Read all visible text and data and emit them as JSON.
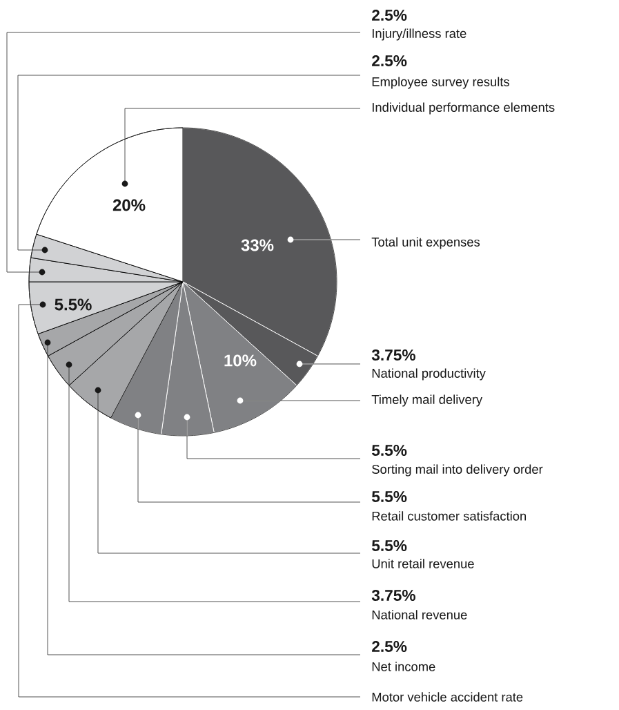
{
  "chart_data": {
    "type": "pie",
    "categories": [
      "Total unit expenses",
      "National productivity",
      "Timely mail delivery",
      "Sorting mail into delivery order",
      "Retail customer satisfaction",
      "Unit retail revenue",
      "National revenue",
      "Net income",
      "Motor vehicle accident rate",
      "Injury/illness rate",
      "Employee survey results",
      "Individual performance elements"
    ],
    "values": [
      33,
      3.75,
      10,
      5.5,
      5.5,
      5.5,
      3.75,
      2.5,
      5.5,
      2.5,
      2.5,
      20
    ],
    "colors": [
      "#58585a",
      "#58585a",
      "#808184",
      "#808184",
      "#808184",
      "#a6a7a9",
      "#a6a7a9",
      "#a6a7a9",
      "#d1d2d4",
      "#d1d2d4",
      "#d1d2d4",
      "#ffffff"
    ],
    "value_labels": [
      "33%",
      "3.75%",
      "10%",
      "5.5%",
      "5.5%",
      "5.5%",
      "3.75%",
      "2.5%",
      "5.5%",
      "2.5%",
      "2.5%",
      "20%"
    ]
  }
}
